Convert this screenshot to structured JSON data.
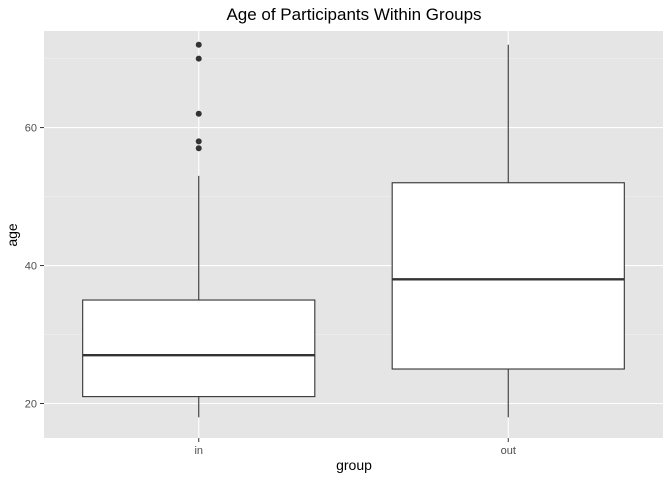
{
  "chart_data": {
    "type": "boxplot",
    "title": "Age of Participants Within Groups",
    "xlabel": "group",
    "ylabel": "age",
    "categories": [
      "in",
      "out"
    ],
    "ylim": [
      15,
      74
    ],
    "yticks": [
      20,
      40,
      60
    ],
    "grid": true,
    "legend": "none",
    "boxes": [
      {
        "category": "in",
        "whisker_low": 18,
        "q1": 21,
        "median": 27,
        "q3": 35,
        "whisker_high": 53,
        "outliers": [
          57,
          58,
          62,
          70,
          72
        ]
      },
      {
        "category": "out",
        "whisker_low": 18,
        "q1": 25,
        "median": 38,
        "q3": 52,
        "whisker_high": 72,
        "outliers": []
      }
    ],
    "colors": {
      "panel": "#e5e5e5",
      "grid_major": "#ffffff",
      "grid_minor": "#f0f0f0",
      "box_fill": "#ffffff",
      "line": "#333333",
      "outlier": "#333333"
    }
  }
}
